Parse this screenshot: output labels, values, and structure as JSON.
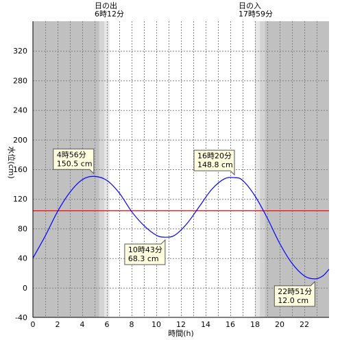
{
  "chart_data": {
    "type": "line",
    "xlabel": "時間(h)",
    "ylabel": "水位(cm)",
    "xlim": [
      0,
      24
    ],
    "ylim": [
      -40,
      360
    ],
    "x_ticks": [
      0,
      2,
      4,
      6,
      8,
      10,
      12,
      14,
      16,
      18,
      20,
      22
    ],
    "y_ticks": [
      -40,
      0,
      40,
      80,
      120,
      160,
      200,
      240,
      280,
      320
    ],
    "grid": true,
    "sunrise": {
      "label": "日の出",
      "time": "6時12分",
      "hour": 6.2
    },
    "sunset": {
      "label": "日の入",
      "time": "17時59分",
      "hour": 17.983
    },
    "reference_level": 104,
    "series": [
      {
        "color": "#0000ff",
        "x": [
          0,
          1,
          2,
          3,
          4,
          4.933,
          6,
          7,
          8,
          9,
          10,
          10.717,
          11.5,
          12.5,
          13.5,
          14.5,
          15.5,
          16.333,
          17,
          18,
          19,
          20,
          21,
          22,
          22.85,
          23.5,
          24
        ],
        "y": [
          40,
          70,
          103,
          129,
          146,
          150.5,
          145,
          128,
          103,
          84,
          71,
          68.3,
          71,
          87,
          110,
          133,
          147,
          148.8,
          145,
          124,
          94,
          60,
          33,
          16,
          12.0,
          16,
          25
        ]
      }
    ],
    "annotations": [
      {
        "time": "4時56分",
        "value": "150.5 cm",
        "x": 4.933,
        "y": 150.5,
        "placement": "above-left"
      },
      {
        "time": "10時43分",
        "value": "68.3 cm",
        "x": 10.717,
        "y": 68.3,
        "placement": "below-left"
      },
      {
        "time": "16時20分",
        "value": "148.8 cm",
        "x": 16.333,
        "y": 148.8,
        "placement": "above-left"
      },
      {
        "time": "22時51分",
        "value": "12.0 cm",
        "x": 22.85,
        "y": 12.0,
        "placement": "below-left"
      }
    ],
    "colors": {
      "night": "#c0c0c0",
      "twilight_outer": "#d3d3d3",
      "twilight_inner": "#e6e6e6",
      "day": "#ffffff",
      "reference_line": "#ff0000",
      "curve": "#0000ff",
      "annotation_fill": "#ffffe0"
    }
  }
}
